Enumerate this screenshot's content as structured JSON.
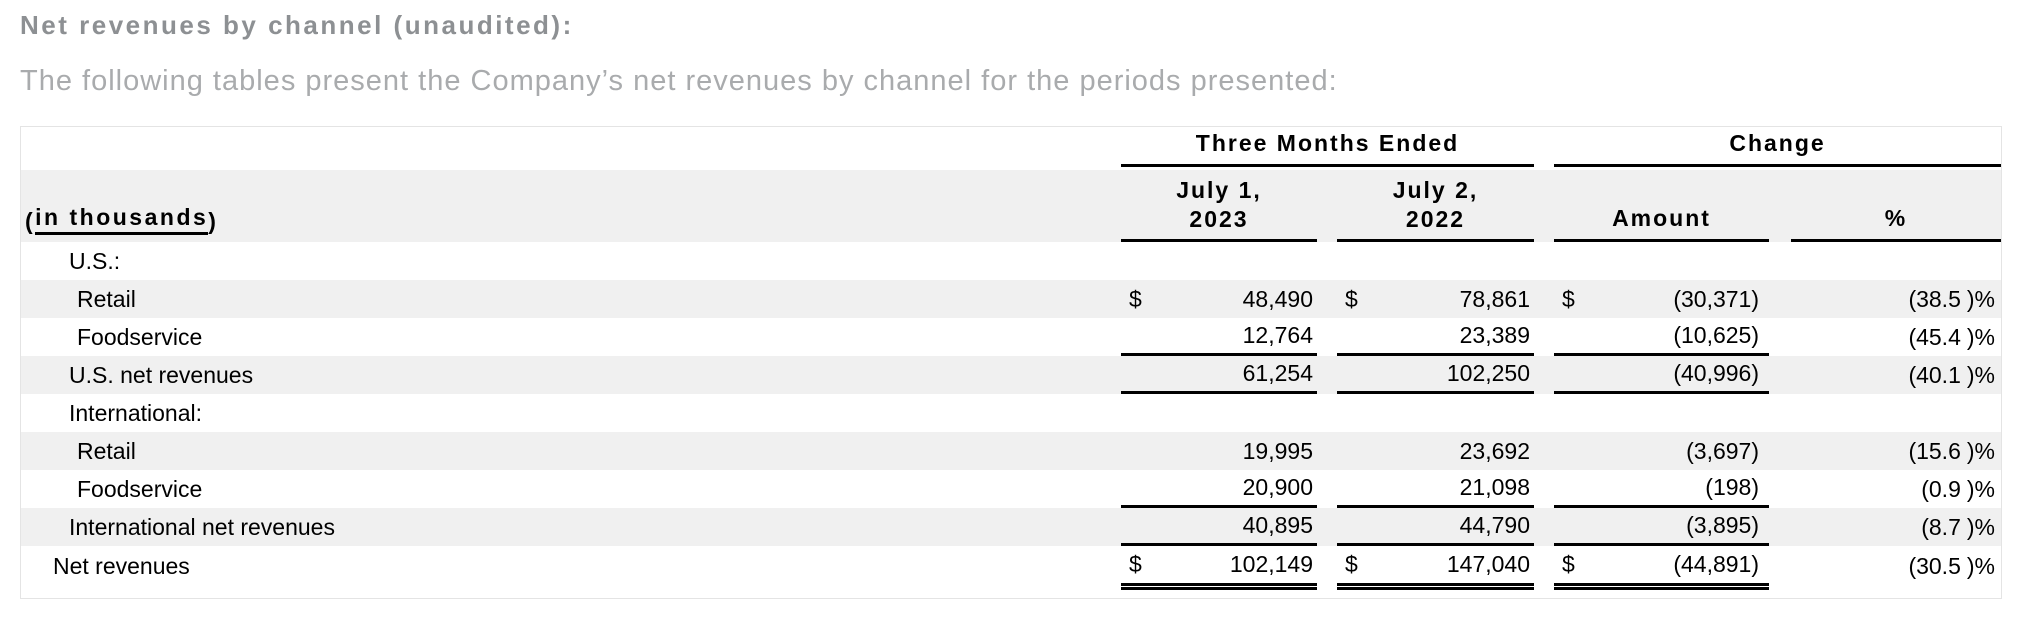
{
  "page": {
    "title": "Net revenues by channel (unaudited):",
    "subtitle": "The following tables present the Company’s net revenues by channel for the periods presented:"
  },
  "table": {
    "units": {
      "open": "(",
      "text": "in thousands",
      "close": ")"
    },
    "currency_symbol": "$",
    "percent_suffix": ")%",
    "groups": [
      "Three Months Ended",
      "Change"
    ],
    "columns": [
      {
        "line1": "July 1,",
        "line2": "2023"
      },
      {
        "line1": "July 2,",
        "line2": "2022"
      },
      {
        "label": "Amount"
      },
      {
        "label": "%"
      }
    ],
    "colors": {
      "row_shade": "#f0f0f0",
      "rule_black": "#000000",
      "table_border": "#e4e4e4",
      "title_gray": "#8d9093",
      "subtitle_gray": "#a9abad"
    },
    "rows": [
      {
        "label": "U.S.:",
        "indent": 1,
        "shaded": false,
        "has_values": false
      },
      {
        "label": "Retail",
        "indent": 2,
        "shaded": true,
        "has_values": true,
        "dollar": true,
        "v2023": "48,490",
        "v2022": "78,861",
        "amount": "(30,371)",
        "pct": "(38.5)%",
        "underline": false,
        "double_underline": false
      },
      {
        "label": "Foodservice",
        "indent": 2,
        "shaded": false,
        "has_values": true,
        "dollar": false,
        "v2023": "12,764",
        "v2022": "23,389",
        "amount": "(10,625)",
        "pct": "(45.4)%",
        "underline": true,
        "double_underline": false
      },
      {
        "label": "U.S. net revenues",
        "indent": 1,
        "shaded": true,
        "has_values": true,
        "dollar": false,
        "v2023": "61,254",
        "v2022": "102,250",
        "amount": "(40,996)",
        "pct": "(40.1)%",
        "underline": true,
        "double_underline": false
      },
      {
        "label": "International:",
        "indent": 1,
        "shaded": false,
        "has_values": false
      },
      {
        "label": "Retail",
        "indent": 2,
        "shaded": true,
        "has_values": true,
        "dollar": false,
        "v2023": "19,995",
        "v2022": "23,692",
        "amount": "(3,697)",
        "pct": "(15.6)%",
        "underline": false,
        "double_underline": false
      },
      {
        "label": "Foodservice",
        "indent": 2,
        "shaded": false,
        "has_values": true,
        "dollar": false,
        "v2023": "20,900",
        "v2022": "21,098",
        "amount": "(198)",
        "pct": "(0.9)%",
        "underline": true,
        "double_underline": false
      },
      {
        "label": "International net revenues",
        "indent": 1,
        "shaded": true,
        "has_values": true,
        "dollar": false,
        "v2023": "40,895",
        "v2022": "44,790",
        "amount": "(3,895)",
        "pct": "(8.7)%",
        "underline": true,
        "double_underline": false
      },
      {
        "label": "Net revenues",
        "indent": 0,
        "shaded": false,
        "has_values": true,
        "dollar": true,
        "v2023": "102,149",
        "v2022": "147,040",
        "amount": "(44,891)",
        "pct": "(30.5)%",
        "underline": false,
        "double_underline": true
      }
    ]
  }
}
